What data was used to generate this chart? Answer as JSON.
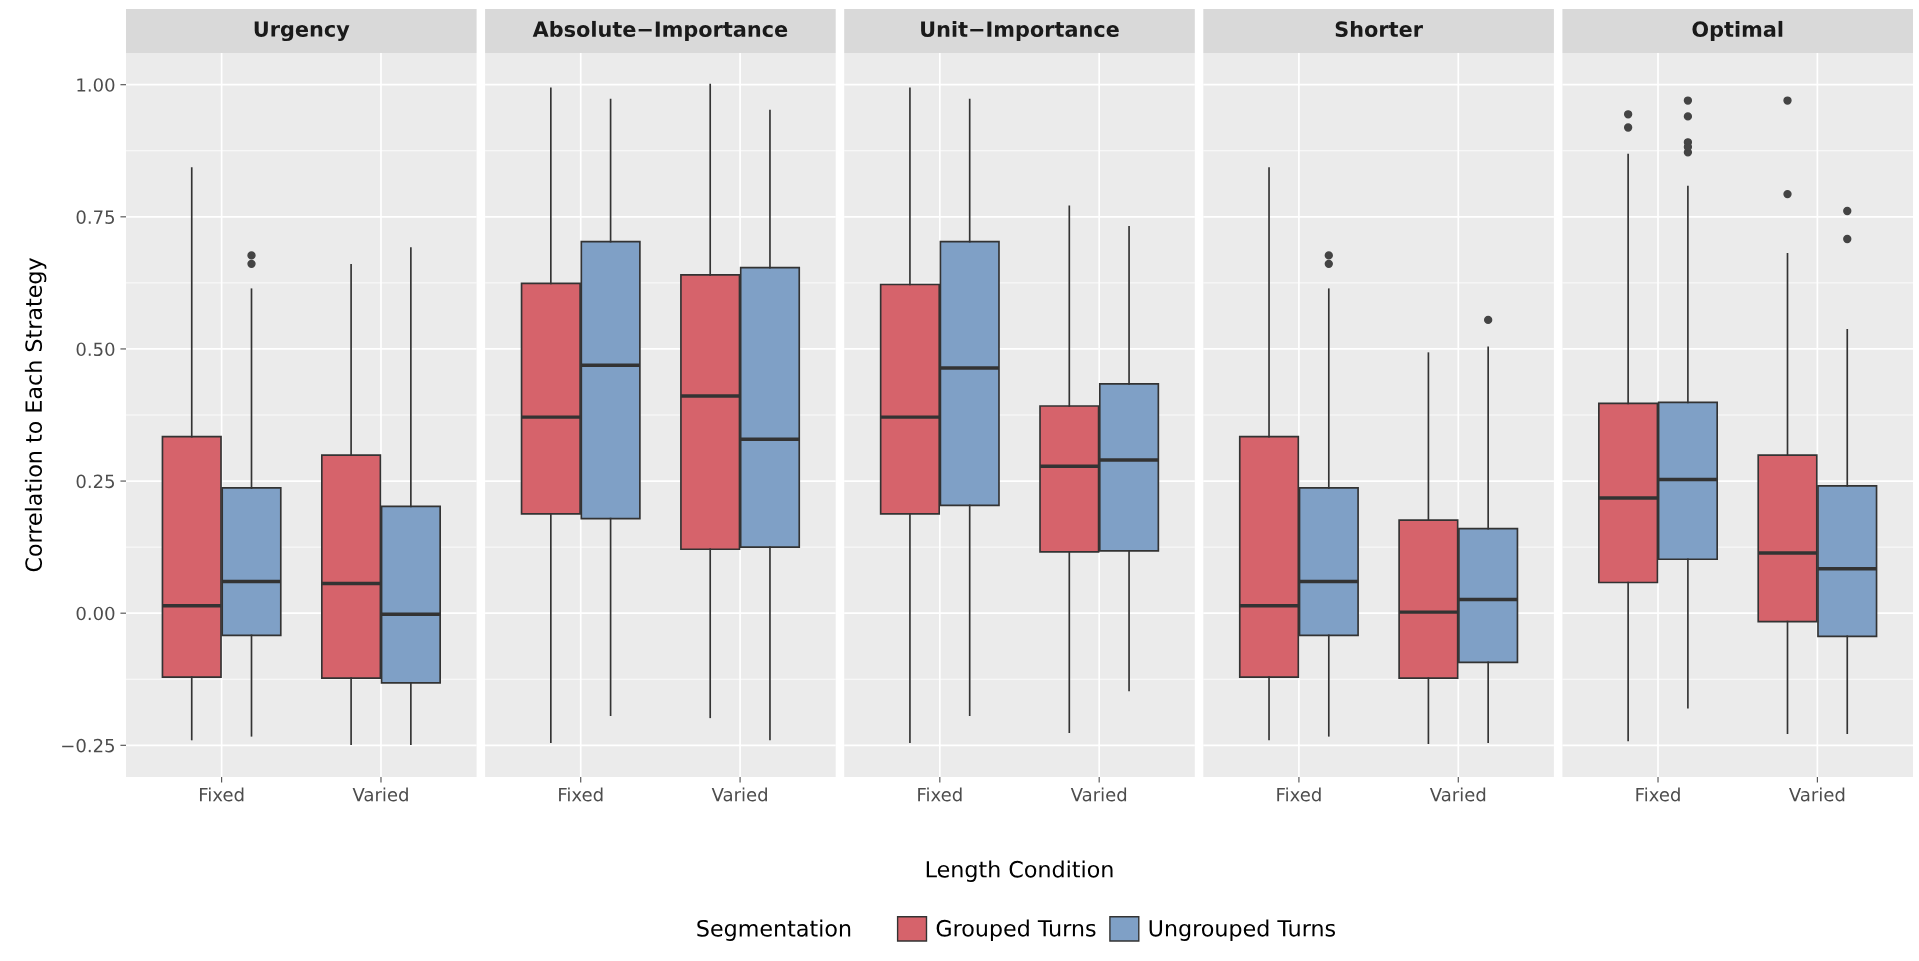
{
  "chart_data": [
    {
      "type": "box",
      "title": "Urgency",
      "ylabel": "Correlation to Each Strategy",
      "categories": [
        "Fixed",
        "Varied"
      ],
      "ylim": [
        -0.31,
        1.06
      ],
      "yticks": [
        {
          "value": -0.25,
          "label": "−0.25"
        },
        {
          "value": 0,
          "label": "0.00"
        },
        {
          "value": 0.25,
          "label": "0.25"
        },
        {
          "value": 0.5,
          "label": "0.50"
        },
        {
          "value": 0.75,
          "label": "0.75"
        },
        {
          "value": 1,
          "label": "1.00"
        }
      ],
      "grid": true,
      "legend": "bottom",
      "legend_title": "Segmentation",
      "series": [
        {
          "name": "Grouped Turns",
          "color": "#d6636b",
          "boxes": [
            {
              "low": -0.239,
              "q1": -0.121,
              "median": 0.014,
              "q3": 0.334,
              "high": 0.842
            },
            {
              "low": -0.248,
              "q1": -0.123,
              "median": 0.056,
              "q3": 0.299,
              "high": 0.659
            }
          ]
        },
        {
          "name": "Ungrouped Turns",
          "color": "#7fa0c6",
          "boxes": [
            {
              "low": -0.232,
              "q1": -0.042,
              "median": 0.06,
              "q3": 0.237,
              "high": 0.613,
              "outliers": [
                0.677,
                0.661
              ]
            },
            {
              "low": -0.248,
              "q1": -0.132,
              "median": -0.002,
              "q3": 0.202,
              "high": 0.691
            }
          ]
        }
      ]
    },
    {
      "type": "box",
      "title": "Absolute−Importance",
      "categories": [
        "Fixed",
        "Varied"
      ],
      "ylim": [
        -0.31,
        1.06
      ],
      "yticks": [
        -0.25,
        0,
        0.25,
        0.5,
        0.75,
        1
      ],
      "grid": true,
      "tick_labels": "x",
      "series": [
        {
          "color": "#d6636b",
          "boxes": [
            {
              "low": -0.244,
              "q1": 0.188,
              "median": 0.371,
              "q3": 0.624,
              "high": 0.993
            },
            {
              "low": -0.197,
              "q1": 0.121,
              "median": 0.411,
              "q3": 0.64,
              "high": 1.0
            }
          ]
        },
        {
          "color": "#7fa0c6",
          "boxes": [
            {
              "low": -0.193,
              "q1": 0.179,
              "median": 0.469,
              "q3": 0.703,
              "high": 0.972
            },
            {
              "low": -0.239,
              "q1": 0.125,
              "median": 0.329,
              "q3": 0.654,
              "high": 0.951
            }
          ]
        }
      ]
    },
    {
      "type": "box",
      "title": "Unit−Importance",
      "xlabel": "Length Condition",
      "categories": [
        "Fixed",
        "Varied"
      ],
      "ylim": [
        -0.31,
        1.06
      ],
      "yticks": [
        -0.25,
        0,
        0.25,
        0.5,
        0.75,
        1
      ],
      "grid": true,
      "tick_labels": "x",
      "series": [
        {
          "color": "#d6636b",
          "boxes": [
            {
              "low": -0.244,
              "q1": 0.188,
              "median": 0.371,
              "q3": 0.622,
              "high": 0.993
            },
            {
              "low": -0.225,
              "q1": 0.116,
              "median": 0.278,
              "q3": 0.392,
              "high": 0.77
            }
          ]
        },
        {
          "color": "#7fa0c6",
          "boxes": [
            {
              "low": -0.193,
              "q1": 0.204,
              "median": 0.464,
              "q3": 0.703,
              "high": 0.972
            },
            {
              "low": -0.146,
              "q1": 0.118,
              "median": 0.29,
              "q3": 0.434,
              "high": 0.731
            }
          ]
        }
      ]
    },
    {
      "type": "box",
      "title": "Shorter",
      "categories": [
        "Fixed",
        "Varied"
      ],
      "ylim": [
        -0.31,
        1.06
      ],
      "yticks": [
        -0.25,
        0,
        0.25,
        0.5,
        0.75,
        1
      ],
      "grid": true,
      "tick_labels": "x",
      "series": [
        {
          "color": "#d6636b",
          "boxes": [
            {
              "low": -0.239,
              "q1": -0.121,
              "median": 0.014,
              "q3": 0.334,
              "high": 0.842
            },
            {
              "low": -0.246,
              "q1": -0.123,
              "median": 0.002,
              "q3": 0.176,
              "high": 0.492
            }
          ]
        },
        {
          "color": "#7fa0c6",
          "boxes": [
            {
              "low": -0.232,
              "q1": -0.042,
              "median": 0.06,
              "q3": 0.237,
              "high": 0.613,
              "outliers": [
                0.677,
                0.661
              ]
            },
            {
              "low": -0.244,
              "q1": -0.093,
              "median": 0.026,
              "q3": 0.16,
              "high": 0.503,
              "outliers": [
                0.555
              ]
            }
          ]
        }
      ]
    },
    {
      "type": "box",
      "title": "Optimal",
      "categories": [
        "Fixed",
        "Varied"
      ],
      "ylim": [
        -0.31,
        1.06
      ],
      "yticks": [
        -0.25,
        0,
        0.25,
        0.5,
        0.75,
        1
      ],
      "grid": true,
      "tick_labels": "x",
      "series": [
        {
          "color": "#d6636b",
          "boxes": [
            {
              "low": -0.241,
              "q1": 0.058,
              "median": 0.218,
              "q3": 0.397,
              "high": 0.868,
              "outliers": [
                0.944,
                0.919
              ]
            },
            {
              "low": -0.227,
              "q1": -0.016,
              "median": 0.114,
              "q3": 0.299,
              "high": 0.68,
              "outliers": [
                0.97,
                0.793
              ]
            }
          ]
        },
        {
          "color": "#7fa0c6",
          "boxes": [
            {
              "low": -0.179,
              "q1": 0.102,
              "median": 0.253,
              "q3": 0.399,
              "high": 0.807,
              "outliers": [
                0.97,
                0.94,
                0.891,
                0.882,
                0.872
              ]
            },
            {
              "low": -0.227,
              "q1": -0.044,
              "median": 0.084,
              "q3": 0.241,
              "high": 0.536,
              "outliers": [
                0.761,
                0.708
              ]
            }
          ]
        }
      ]
    }
  ]
}
